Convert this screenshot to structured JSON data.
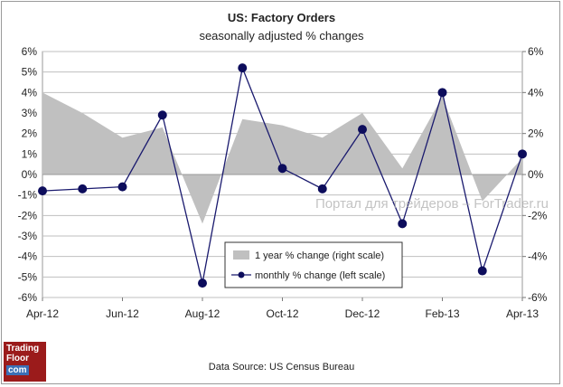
{
  "chart_data": {
    "type": "line",
    "title": "US: Factory Orders",
    "subtitle": "seasonally adjusted % changes",
    "source": "Data Source: US Census Bureau",
    "x_labels": [
      "Apr-12",
      "Jun-12",
      "Aug-12",
      "Oct-12",
      "Dec-12",
      "Feb-13",
      "Apr-13"
    ],
    "left_axis": {
      "min": -6,
      "max": 6,
      "step": 1,
      "labels": [
        "6%",
        "5%",
        "4%",
        "3%",
        "2%",
        "1%",
        "0%",
        "-1%",
        "-2%",
        "-3%",
        "-4%",
        "-5%",
        "-6%"
      ]
    },
    "right_axis": {
      "min": -6,
      "max": 6,
      "step": 2,
      "labels": [
        "6%",
        "4%",
        "2%",
        "0%",
        "-2%",
        "-4%",
        "-6%"
      ]
    },
    "series": [
      {
        "name": "1 year % change (right scale)",
        "type": "area",
        "axis": "right",
        "color": "#c0c0c0",
        "values": [
          4.0,
          3.0,
          1.8,
          2.3,
          -2.4,
          2.7,
          2.4,
          1.8,
          3.0,
          0.3,
          3.8,
          -1.3,
          0.8
        ]
      },
      {
        "name": "monthly % change (left scale)",
        "type": "line",
        "axis": "left",
        "color": "#1a1a6e",
        "values": [
          -0.8,
          -0.7,
          -0.6,
          2.9,
          -5.3,
          5.2,
          0.3,
          -0.7,
          2.2,
          -2.4,
          4.0,
          -4.7,
          1.0
        ]
      }
    ],
    "legend": [
      "1 year % change (right scale)",
      "monthly % change (left scale)"
    ],
    "watermark": "Портал для трейдеров – ForTrader.ru"
  },
  "logo": {
    "line1": "Trading",
    "line2": "Floor",
    "line3": "com"
  },
  "colors": {
    "plot_bg": "#ffffff",
    "grid": "#bfbfbf",
    "area": "#c0c0c0",
    "line": "#1a1a6e",
    "marker": "#0d0d5c"
  }
}
